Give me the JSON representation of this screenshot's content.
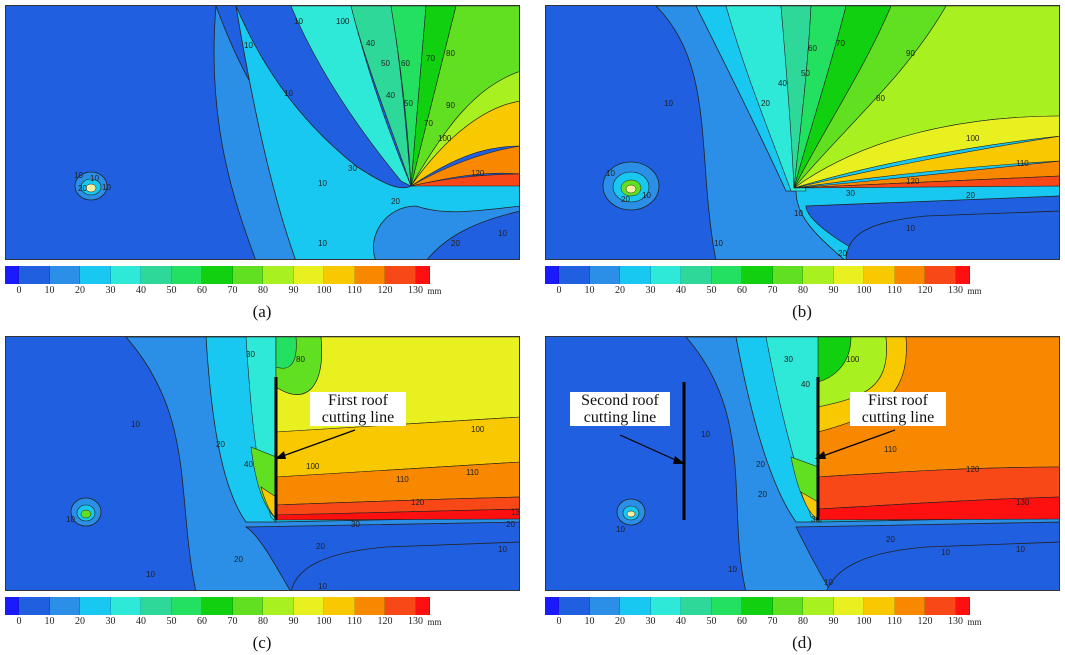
{
  "legend": {
    "ticks": [
      "0",
      "10",
      "20",
      "30",
      "40",
      "50",
      "60",
      "70",
      "80",
      "90",
      "100",
      "110",
      "120",
      "130"
    ],
    "unit": "mm",
    "colors": [
      "#1a1aff",
      "#1f5fe0",
      "#2b8fe8",
      "#18c8f0",
      "#2ee8d8",
      "#2ed898",
      "#23e060",
      "#10d010",
      "#60e020",
      "#a8f020",
      "#e8f020",
      "#f8c800",
      "#f88800",
      "#f84818",
      "#ff1010"
    ]
  },
  "panels": [
    {
      "caption": "(a)"
    },
    {
      "caption": "(b)"
    },
    {
      "caption": "(c)",
      "label_first": "First roof cutting line"
    },
    {
      "caption": "(d)",
      "label_first": "First roof cutting line",
      "label_second": "Second roof cutting line"
    }
  ],
  "contour_labels": {
    "a": [
      "10",
      "10",
      "10",
      "10",
      "10",
      "100",
      "40",
      "50",
      "60",
      "70",
      "80",
      "40",
      "50",
      "70",
      "90",
      "100",
      "120",
      "30",
      "20",
      "20",
      "10",
      "10",
      "10",
      "20",
      "10"
    ],
    "b": [
      "10",
      "10",
      "20",
      "40",
      "50",
      "60",
      "70",
      "80",
      "90",
      "100",
      "110",
      "120",
      "30",
      "20",
      "10",
      "20",
      "10",
      "10",
      "20",
      "10"
    ],
    "c": [
      "10",
      "10",
      "20",
      "30",
      "80",
      "100",
      "110",
      "120",
      "130",
      "100",
      "110",
      "20",
      "20",
      "10",
      "10",
      "30",
      "40",
      "20",
      "10"
    ],
    "d": [
      "10",
      "10",
      "20",
      "30",
      "40",
      "100",
      "110",
      "120",
      "130",
      "30",
      "20",
      "10",
      "10",
      "10",
      "10",
      "20"
    ]
  }
}
